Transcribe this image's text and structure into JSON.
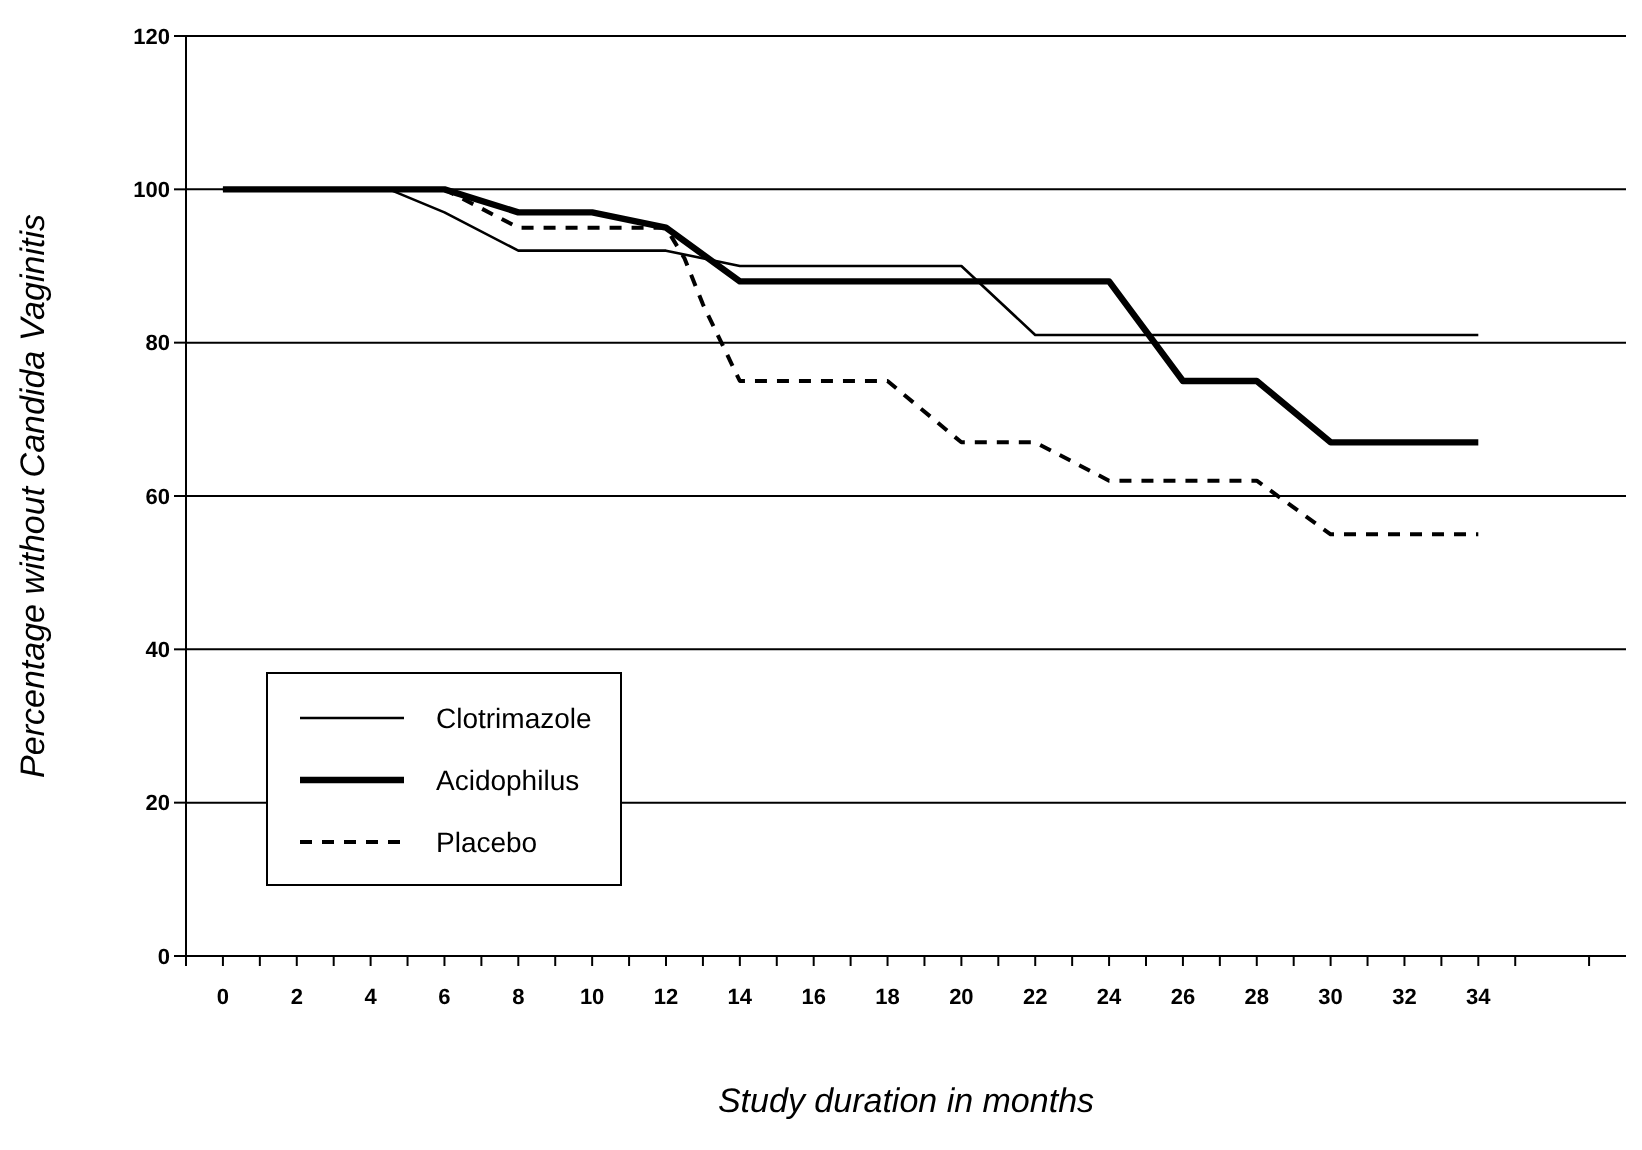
{
  "chart_data": {
    "type": "line",
    "xlabel": "Study duration in months",
    "ylabel": "Percentage without Candida Vaginitis",
    "xlim": [
      -1,
      38
    ],
    "xticks": [
      {
        "value": -1,
        "label": null
      },
      0,
      {
        "value": 1,
        "label": null
      },
      2,
      {
        "value": 3,
        "label": null
      },
      4,
      {
        "value": 5,
        "label": null
      },
      6,
      {
        "value": 7,
        "label": null
      },
      8,
      {
        "value": 9,
        "label": null
      },
      10,
      {
        "value": 11,
        "label": null
      },
      12,
      {
        "value": 13,
        "label": null
      },
      14,
      {
        "value": 15,
        "label": null
      },
      16,
      {
        "value": 17,
        "label": null
      },
      18,
      {
        "value": 19,
        "label": null
      },
      20,
      {
        "value": 21,
        "label": null
      },
      22,
      {
        "value": 23,
        "label": null
      },
      24,
      {
        "value": 25,
        "label": null
      },
      26,
      {
        "value": 27,
        "label": null
      },
      28,
      {
        "value": 29,
        "label": null
      },
      30,
      {
        "value": 31,
        "label": null
      },
      32,
      {
        "value": 33,
        "label": null
      },
      34,
      {
        "value": 35,
        "label": null
      },
      {
        "value": 37,
        "label": null
      }
    ],
    "ylim": [
      0,
      120
    ],
    "yticks": [
      0,
      20,
      40,
      60,
      80,
      100,
      120
    ],
    "grid": "y",
    "legend": "bottom left",
    "marker": "none",
    "series": [
      {
        "name": "Clotrimazole",
        "color": "#000000",
        "line_style": "solid",
        "x": [
          0,
          4.5,
          6,
          8,
          12,
          14,
          20,
          22,
          34
        ],
        "values": [
          100,
          100,
          97,
          92,
          92,
          90,
          90,
          81,
          81
        ]
      },
      {
        "name": "Acidophilus",
        "color": "#000000",
        "line_style": "solid",
        "x": [
          0,
          6,
          8,
          10,
          12,
          14,
          24,
          26,
          28,
          30,
          34
        ],
        "values": [
          100,
          100,
          97,
          97,
          95,
          88,
          88,
          75,
          75,
          67,
          67
        ]
      },
      {
        "name": "Placebo",
        "color": "#000000",
        "line_style": "dashed",
        "x": [
          0,
          6,
          8,
          12,
          12.5,
          13,
          14,
          18,
          20,
          22,
          24,
          28,
          30,
          34
        ],
        "values": [
          100,
          100,
          95,
          95,
          91,
          85,
          75,
          75,
          67,
          67,
          62,
          62,
          55,
          55
        ]
      }
    ]
  }
}
